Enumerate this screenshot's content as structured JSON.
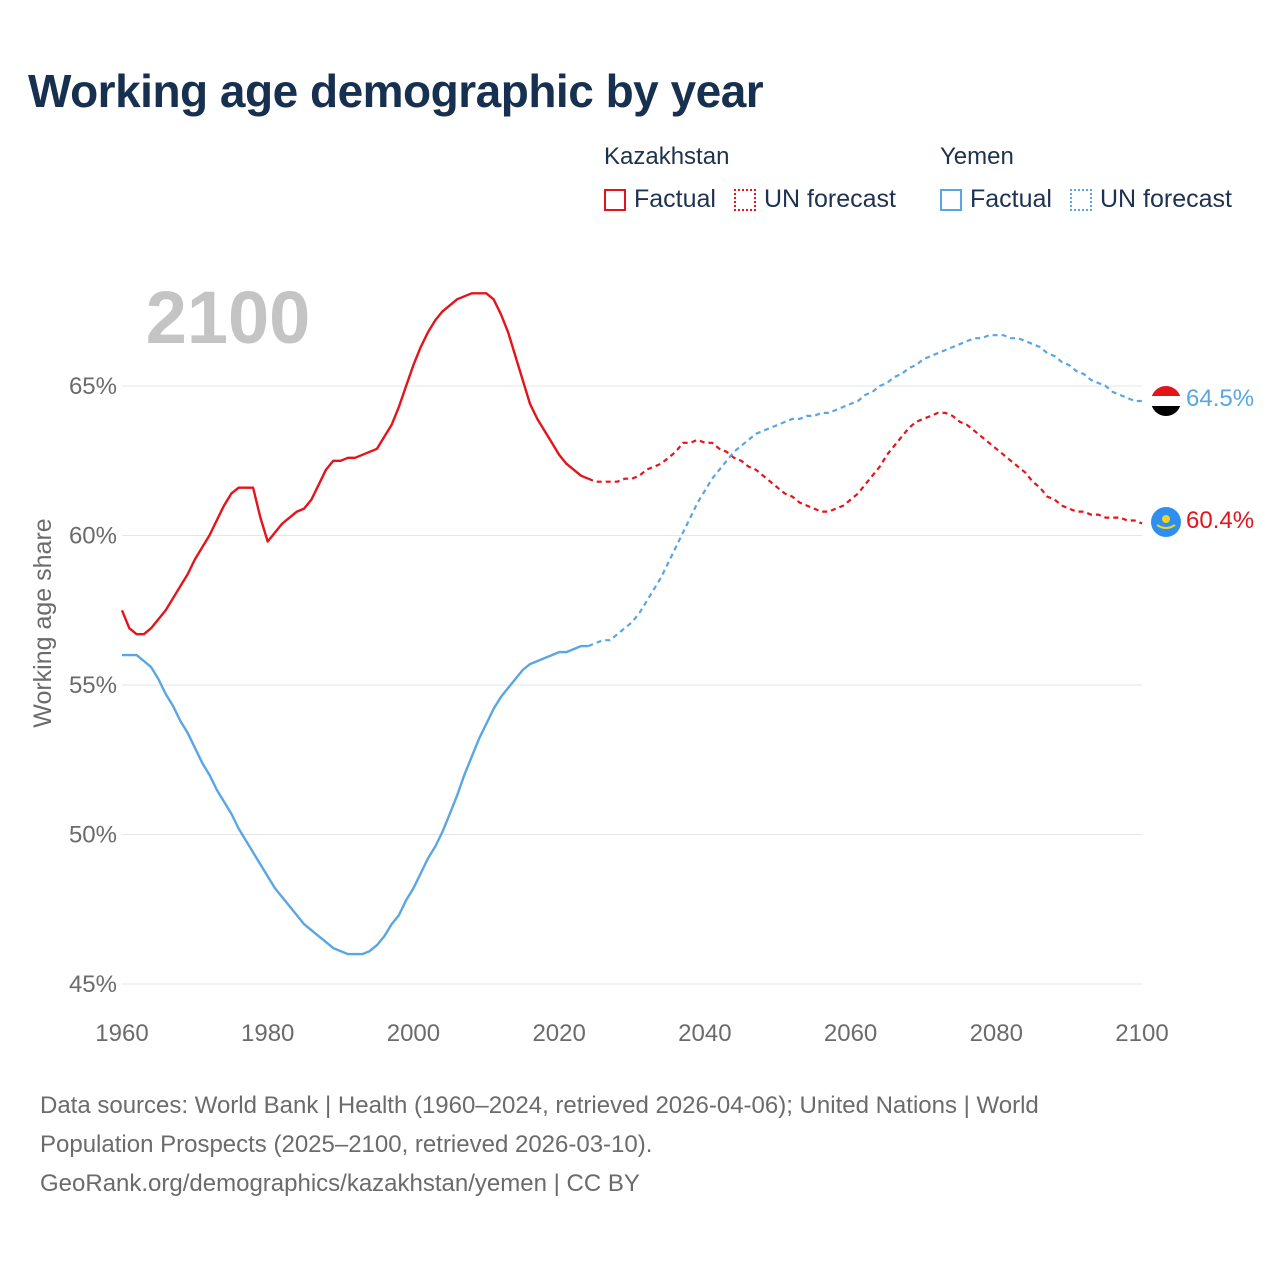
{
  "title": "Working age demographic by year",
  "year_watermark": "2100",
  "legend": {
    "groups": [
      {
        "country": "Kazakhstan",
        "color": "#e3141b",
        "factual_label": "Factual",
        "forecast_label": "UN forecast"
      },
      {
        "country": "Yemen",
        "color": "#5aa6e3",
        "factual_label": "Factual",
        "forecast_label": "UN forecast"
      }
    ]
  },
  "colors": {
    "kazakhstan": "#e3141b",
    "yemen": "#5aa6e3",
    "grid": "#e6e6e6",
    "axis_text": "#6b6b6b",
    "watermark": "#c4c4c4"
  },
  "chart_data": {
    "type": "line",
    "title": "Working age demographic by year",
    "xlabel": "",
    "ylabel": "Working age share",
    "xlim": [
      1960,
      2100
    ],
    "ylim": [
      45,
      69
    ],
    "x_ticks": [
      1960,
      1980,
      2000,
      2020,
      2040,
      2060,
      2080,
      2100
    ],
    "x_tick_labels": [
      "1960",
      "1980",
      "2000",
      "2020",
      "2040",
      "2060",
      "2080",
      "2100"
    ],
    "y_ticks": [
      45,
      50,
      55,
      60,
      65
    ],
    "y_tick_labels": [
      "45%",
      "50%",
      "55%",
      "60%",
      "65%"
    ],
    "factual_end_year": 2024,
    "series": [
      {
        "name": "Kazakhstan",
        "end_label": "60.4%",
        "flag_icon": "kazakhstan-flag-icon",
        "points": [
          [
            1960,
            57.5
          ],
          [
            1961,
            56.9
          ],
          [
            1962,
            56.7
          ],
          [
            1963,
            56.7
          ],
          [
            1964,
            56.9
          ],
          [
            1965,
            57.2
          ],
          [
            1966,
            57.5
          ],
          [
            1967,
            57.9
          ],
          [
            1968,
            58.3
          ],
          [
            1969,
            58.7
          ],
          [
            1970,
            59.2
          ],
          [
            1971,
            59.6
          ],
          [
            1972,
            60.0
          ],
          [
            1973,
            60.5
          ],
          [
            1974,
            61.0
          ],
          [
            1975,
            61.4
          ],
          [
            1976,
            61.6
          ],
          [
            1977,
            61.6
          ],
          [
            1978,
            61.6
          ],
          [
            1979,
            60.6
          ],
          [
            1980,
            59.8
          ],
          [
            1981,
            60.1
          ],
          [
            1982,
            60.4
          ],
          [
            1983,
            60.6
          ],
          [
            1984,
            60.8
          ],
          [
            1985,
            60.9
          ],
          [
            1986,
            61.2
          ],
          [
            1987,
            61.7
          ],
          [
            1988,
            62.2
          ],
          [
            1989,
            62.5
          ],
          [
            1990,
            62.5
          ],
          [
            1991,
            62.6
          ],
          [
            1992,
            62.6
          ],
          [
            1993,
            62.7
          ],
          [
            1994,
            62.8
          ],
          [
            1995,
            62.9
          ],
          [
            1996,
            63.3
          ],
          [
            1997,
            63.7
          ],
          [
            1998,
            64.3
          ],
          [
            1999,
            65.0
          ],
          [
            2000,
            65.7
          ],
          [
            2001,
            66.3
          ],
          [
            2002,
            66.8
          ],
          [
            2003,
            67.2
          ],
          [
            2004,
            67.5
          ],
          [
            2005,
            67.7
          ],
          [
            2006,
            67.9
          ],
          [
            2007,
            68.0
          ],
          [
            2008,
            68.1
          ],
          [
            2009,
            68.1
          ],
          [
            2010,
            68.1
          ],
          [
            2011,
            67.9
          ],
          [
            2012,
            67.4
          ],
          [
            2013,
            66.8
          ],
          [
            2014,
            66.0
          ],
          [
            2015,
            65.2
          ],
          [
            2016,
            64.4
          ],
          [
            2017,
            63.9
          ],
          [
            2018,
            63.5
          ],
          [
            2019,
            63.1
          ],
          [
            2020,
            62.7
          ],
          [
            2021,
            62.4
          ],
          [
            2022,
            62.2
          ],
          [
            2023,
            62.0
          ],
          [
            2024,
            61.9
          ],
          [
            2025,
            61.8
          ],
          [
            2026,
            61.8
          ],
          [
            2027,
            61.8
          ],
          [
            2028,
            61.8
          ],
          [
            2029,
            61.9
          ],
          [
            2030,
            61.9
          ],
          [
            2031,
            62.0
          ],
          [
            2032,
            62.2
          ],
          [
            2033,
            62.3
          ],
          [
            2034,
            62.4
          ],
          [
            2035,
            62.6
          ],
          [
            2036,
            62.8
          ],
          [
            2037,
            63.1
          ],
          [
            2038,
            63.1
          ],
          [
            2039,
            63.2
          ],
          [
            2040,
            63.1
          ],
          [
            2041,
            63.1
          ],
          [
            2042,
            62.9
          ],
          [
            2043,
            62.8
          ],
          [
            2044,
            62.6
          ],
          [
            2045,
            62.5
          ],
          [
            2046,
            62.3
          ],
          [
            2047,
            62.2
          ],
          [
            2048,
            62.0
          ],
          [
            2049,
            61.8
          ],
          [
            2050,
            61.6
          ],
          [
            2051,
            61.4
          ],
          [
            2052,
            61.3
          ],
          [
            2053,
            61.1
          ],
          [
            2054,
            61.0
          ],
          [
            2055,
            60.9
          ],
          [
            2056,
            60.8
          ],
          [
            2057,
            60.8
          ],
          [
            2058,
            60.9
          ],
          [
            2059,
            61.0
          ],
          [
            2060,
            61.2
          ],
          [
            2061,
            61.4
          ],
          [
            2062,
            61.7
          ],
          [
            2063,
            62.0
          ],
          [
            2064,
            62.3
          ],
          [
            2065,
            62.7
          ],
          [
            2066,
            63.0
          ],
          [
            2067,
            63.3
          ],
          [
            2068,
            63.6
          ],
          [
            2069,
            63.8
          ],
          [
            2070,
            63.9
          ],
          [
            2071,
            64.0
          ],
          [
            2072,
            64.1
          ],
          [
            2073,
            64.1
          ],
          [
            2074,
            64.0
          ],
          [
            2075,
            63.8
          ],
          [
            2076,
            63.7
          ],
          [
            2077,
            63.5
          ],
          [
            2078,
            63.3
          ],
          [
            2079,
            63.1
          ],
          [
            2080,
            62.9
          ],
          [
            2081,
            62.7
          ],
          [
            2082,
            62.5
          ],
          [
            2083,
            62.3
          ],
          [
            2084,
            62.1
          ],
          [
            2085,
            61.8
          ],
          [
            2086,
            61.6
          ],
          [
            2087,
            61.3
          ],
          [
            2088,
            61.2
          ],
          [
            2089,
            61.0
          ],
          [
            2090,
            60.9
          ],
          [
            2091,
            60.8
          ],
          [
            2092,
            60.8
          ],
          [
            2093,
            60.7
          ],
          [
            2094,
            60.7
          ],
          [
            2095,
            60.6
          ],
          [
            2096,
            60.6
          ],
          [
            2097,
            60.6
          ],
          [
            2098,
            60.5
          ],
          [
            2099,
            60.5
          ],
          [
            2100,
            60.4
          ]
        ]
      },
      {
        "name": "Yemen",
        "end_label": "64.5%",
        "flag_icon": "yemen-flag-icon",
        "points": [
          [
            1960,
            56.0
          ],
          [
            1961,
            56.0
          ],
          [
            1962,
            56.0
          ],
          [
            1963,
            55.8
          ],
          [
            1964,
            55.6
          ],
          [
            1965,
            55.2
          ],
          [
            1966,
            54.7
          ],
          [
            1967,
            54.3
          ],
          [
            1968,
            53.8
          ],
          [
            1969,
            53.4
          ],
          [
            1970,
            52.9
          ],
          [
            1971,
            52.4
          ],
          [
            1972,
            52.0
          ],
          [
            1973,
            51.5
          ],
          [
            1974,
            51.1
          ],
          [
            1975,
            50.7
          ],
          [
            1976,
            50.2
          ],
          [
            1977,
            49.8
          ],
          [
            1978,
            49.4
          ],
          [
            1979,
            49.0
          ],
          [
            1980,
            48.6
          ],
          [
            1981,
            48.2
          ],
          [
            1982,
            47.9
          ],
          [
            1983,
            47.6
          ],
          [
            1984,
            47.3
          ],
          [
            1985,
            47.0
          ],
          [
            1986,
            46.8
          ],
          [
            1987,
            46.6
          ],
          [
            1988,
            46.4
          ],
          [
            1989,
            46.2
          ],
          [
            1990,
            46.1
          ],
          [
            1991,
            46.0
          ],
          [
            1992,
            46.0
          ],
          [
            1993,
            46.0
          ],
          [
            1994,
            46.1
          ],
          [
            1995,
            46.3
          ],
          [
            1996,
            46.6
          ],
          [
            1997,
            47.0
          ],
          [
            1998,
            47.3
          ],
          [
            1999,
            47.8
          ],
          [
            2000,
            48.2
          ],
          [
            2001,
            48.7
          ],
          [
            2002,
            49.2
          ],
          [
            2003,
            49.6
          ],
          [
            2004,
            50.1
          ],
          [
            2005,
            50.7
          ],
          [
            2006,
            51.3
          ],
          [
            2007,
            52.0
          ],
          [
            2008,
            52.6
          ],
          [
            2009,
            53.2
          ],
          [
            2010,
            53.7
          ],
          [
            2011,
            54.2
          ],
          [
            2012,
            54.6
          ],
          [
            2013,
            54.9
          ],
          [
            2014,
            55.2
          ],
          [
            2015,
            55.5
          ],
          [
            2016,
            55.7
          ],
          [
            2017,
            55.8
          ],
          [
            2018,
            55.9
          ],
          [
            2019,
            56.0
          ],
          [
            2020,
            56.1
          ],
          [
            2021,
            56.1
          ],
          [
            2022,
            56.2
          ],
          [
            2023,
            56.3
          ],
          [
            2024,
            56.3
          ],
          [
            2025,
            56.4
          ],
          [
            2026,
            56.5
          ],
          [
            2027,
            56.5
          ],
          [
            2028,
            56.7
          ],
          [
            2029,
            56.9
          ],
          [
            2030,
            57.1
          ],
          [
            2031,
            57.4
          ],
          [
            2032,
            57.8
          ],
          [
            2033,
            58.2
          ],
          [
            2034,
            58.6
          ],
          [
            2035,
            59.1
          ],
          [
            2036,
            59.6
          ],
          [
            2037,
            60.1
          ],
          [
            2038,
            60.6
          ],
          [
            2039,
            61.1
          ],
          [
            2040,
            61.5
          ],
          [
            2041,
            61.9
          ],
          [
            2042,
            62.2
          ],
          [
            2043,
            62.5
          ],
          [
            2044,
            62.8
          ],
          [
            2045,
            63.0
          ],
          [
            2046,
            63.2
          ],
          [
            2047,
            63.4
          ],
          [
            2048,
            63.5
          ],
          [
            2049,
            63.6
          ],
          [
            2050,
            63.7
          ],
          [
            2051,
            63.8
          ],
          [
            2052,
            63.9
          ],
          [
            2053,
            63.9
          ],
          [
            2054,
            64.0
          ],
          [
            2055,
            64.0
          ],
          [
            2056,
            64.1
          ],
          [
            2057,
            64.1
          ],
          [
            2058,
            64.2
          ],
          [
            2059,
            64.3
          ],
          [
            2060,
            64.4
          ],
          [
            2061,
            64.5
          ],
          [
            2062,
            64.7
          ],
          [
            2063,
            64.8
          ],
          [
            2064,
            65.0
          ],
          [
            2065,
            65.1
          ],
          [
            2066,
            65.3
          ],
          [
            2067,
            65.4
          ],
          [
            2068,
            65.6
          ],
          [
            2069,
            65.7
          ],
          [
            2070,
            65.9
          ],
          [
            2071,
            66.0
          ],
          [
            2072,
            66.1
          ],
          [
            2073,
            66.2
          ],
          [
            2074,
            66.3
          ],
          [
            2075,
            66.4
          ],
          [
            2076,
            66.5
          ],
          [
            2077,
            66.6
          ],
          [
            2078,
            66.6
          ],
          [
            2079,
            66.7
          ],
          [
            2080,
            66.7
          ],
          [
            2081,
            66.7
          ],
          [
            2082,
            66.6
          ],
          [
            2083,
            66.6
          ],
          [
            2084,
            66.5
          ],
          [
            2085,
            66.4
          ],
          [
            2086,
            66.3
          ],
          [
            2087,
            66.1
          ],
          [
            2088,
            66.0
          ],
          [
            2089,
            65.8
          ],
          [
            2090,
            65.7
          ],
          [
            2091,
            65.5
          ],
          [
            2092,
            65.4
          ],
          [
            2093,
            65.2
          ],
          [
            2094,
            65.1
          ],
          [
            2095,
            65.0
          ],
          [
            2096,
            64.8
          ],
          [
            2097,
            64.7
          ],
          [
            2098,
            64.6
          ],
          [
            2099,
            64.5
          ],
          [
            2100,
            64.5
          ]
        ]
      }
    ]
  },
  "source": {
    "line1": "Data sources: World Bank | Health (1960–2024, retrieved 2026-04-06); United Nations | World",
    "line2": "Population Prospects (2025–2100, retrieved 2026-03-10).",
    "line3": "GeoRank.org/demographics/kazakhstan/yemen | CC BY"
  }
}
